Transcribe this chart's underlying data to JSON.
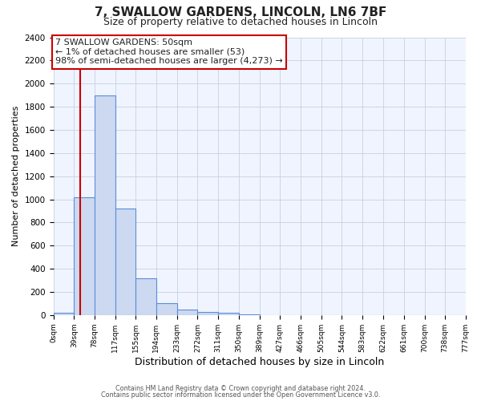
{
  "title": "7, SWALLOW GARDENS, LINCOLN, LN6 7BF",
  "subtitle": "Size of property relative to detached houses in Lincoln",
  "xlabel": "Distribution of detached houses by size in Lincoln",
  "ylabel": "Number of detached properties",
  "bar_edges": [
    0,
    39,
    78,
    117,
    155,
    194,
    233,
    272,
    311,
    350,
    389,
    427,
    466,
    505,
    544,
    583,
    622,
    661,
    700,
    738,
    777
  ],
  "bar_heights": [
    20,
    1020,
    1900,
    920,
    320,
    105,
    50,
    30,
    20,
    5,
    0,
    0,
    0,
    0,
    0,
    0,
    0,
    0,
    0,
    0
  ],
  "bar_color": "#ccd9f0",
  "bar_edge_color": "#5b8dd9",
  "tick_labels": [
    "0sqm",
    "39sqm",
    "78sqm",
    "117sqm",
    "155sqm",
    "194sqm",
    "233sqm",
    "272sqm",
    "311sqm",
    "350sqm",
    "389sqm",
    "427sqm",
    "466sqm",
    "505sqm",
    "544sqm",
    "583sqm",
    "622sqm",
    "661sqm",
    "700sqm",
    "738sqm",
    "777sqm"
  ],
  "ylim": [
    0,
    2400
  ],
  "yticks": [
    0,
    200,
    400,
    600,
    800,
    1000,
    1200,
    1400,
    1600,
    1800,
    2000,
    2200,
    2400
  ],
  "property_value": 50,
  "red_line_color": "#cc0000",
  "annotation_box_edge_color": "#cc0000",
  "annotation_line1": "7 SWALLOW GARDENS: 50sqm",
  "annotation_line2": "← 1% of detached houses are smaller (53)",
  "annotation_line3": "98% of semi-detached houses are larger (4,273) →",
  "footer_line1": "Contains HM Land Registry data © Crown copyright and database right 2024.",
  "footer_line2": "Contains public sector information licensed under the Open Government Licence v3.0.",
  "bg_color": "#f0f4ff",
  "grid_color": "#c8d0e0",
  "text_color": "#222222"
}
